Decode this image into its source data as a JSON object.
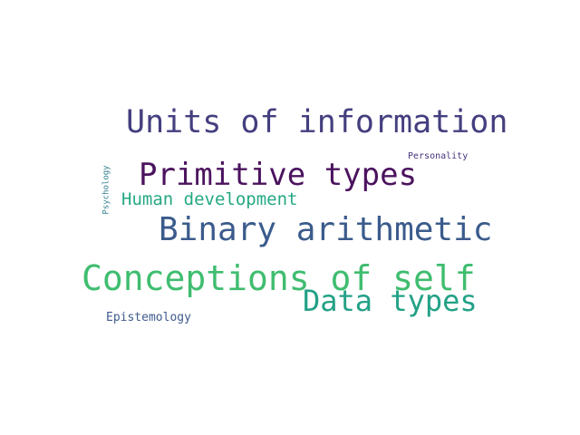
{
  "words": [
    {
      "text": "Units of information",
      "color": "#443f7f"
    },
    {
      "text": "Primitive types",
      "color": "#4b135f"
    },
    {
      "text": "Personality",
      "color": "#46337e"
    },
    {
      "text": "Human development",
      "color": "#25a883"
    },
    {
      "text": "Psychology",
      "color": "#2f7f8e"
    },
    {
      "text": "Binary arithmetic",
      "color": "#3b5b8c"
    },
    {
      "text": "Conceptions of self",
      "color": "#3fbd6f"
    },
    {
      "text": "Data types",
      "color": "#22a186"
    },
    {
      "text": "Epistemology",
      "color": "#3e5a8c"
    }
  ]
}
